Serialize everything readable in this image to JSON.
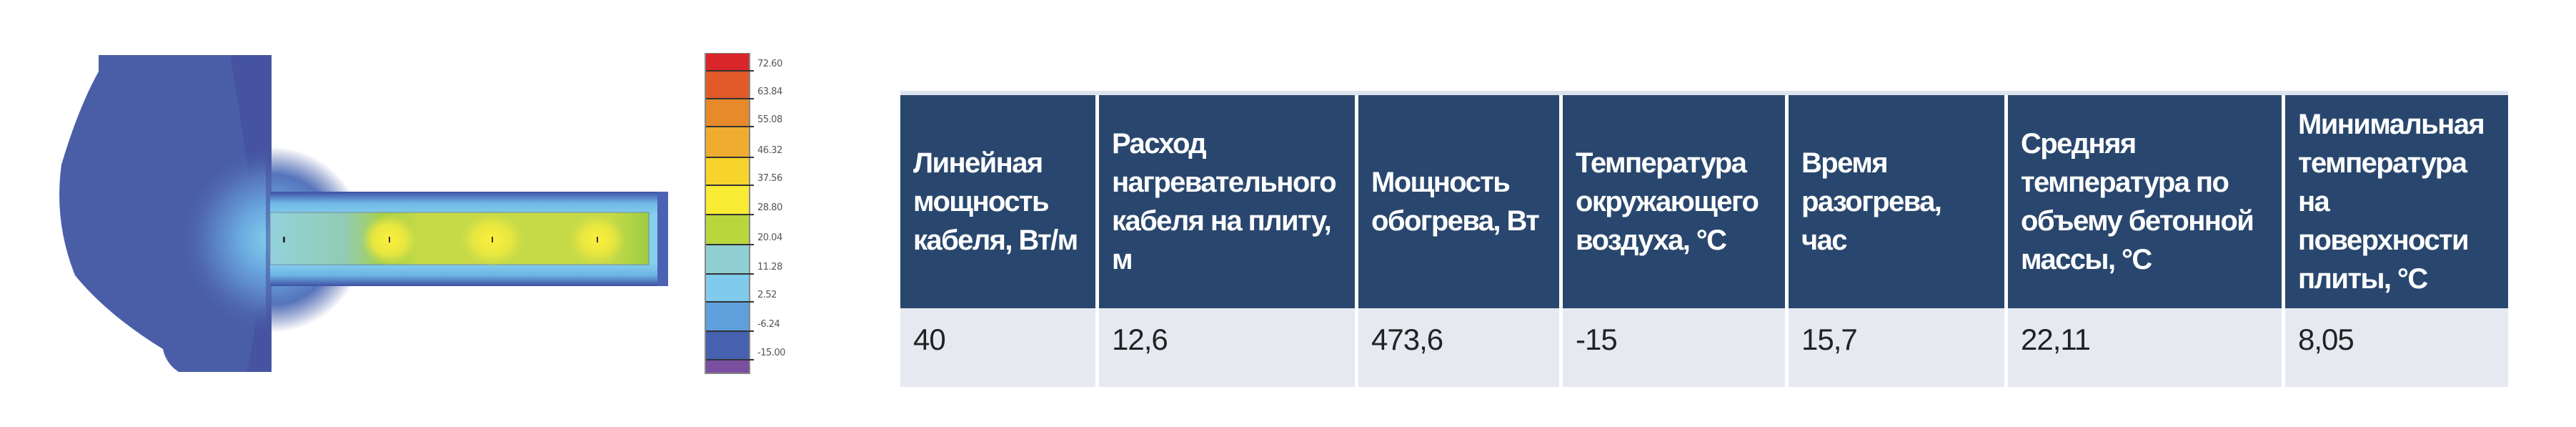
{
  "legend": {
    "labels": [
      "72.60",
      "63.84",
      "55.08",
      "46.32",
      "37.56",
      "28.80",
      "20.04",
      "11.28",
      "2.52",
      "-6.24",
      "-15.00"
    ],
    "colors": [
      "#d9262a",
      "#e05a2a",
      "#e68a2c",
      "#eeac30",
      "#f6d42c",
      "#f8ec34",
      "#b9d63c",
      "#8fcfd2",
      "#80cbec",
      "#5e9fdc",
      "#4561b0",
      "#7a4fa0"
    ]
  },
  "table": {
    "headers": [
      "Линейная мощность кабеля, Вт/м",
      "Расход нагревательного кабеля на плиту, м",
      "Мощность обогрева, Вт",
      "Температура окружающего воздуха, °С",
      "Время разогрева, час",
      "Средняя температура по объему бетонной массы, °С",
      "Минимальная температура на поверхности плиты, °С"
    ],
    "row": [
      "40",
      "12,6",
      "473,6",
      "-15",
      "15,7",
      "22,11",
      "8,05"
    ],
    "header_color": "#29476e",
    "cell_color": "#e6e9f0"
  }
}
